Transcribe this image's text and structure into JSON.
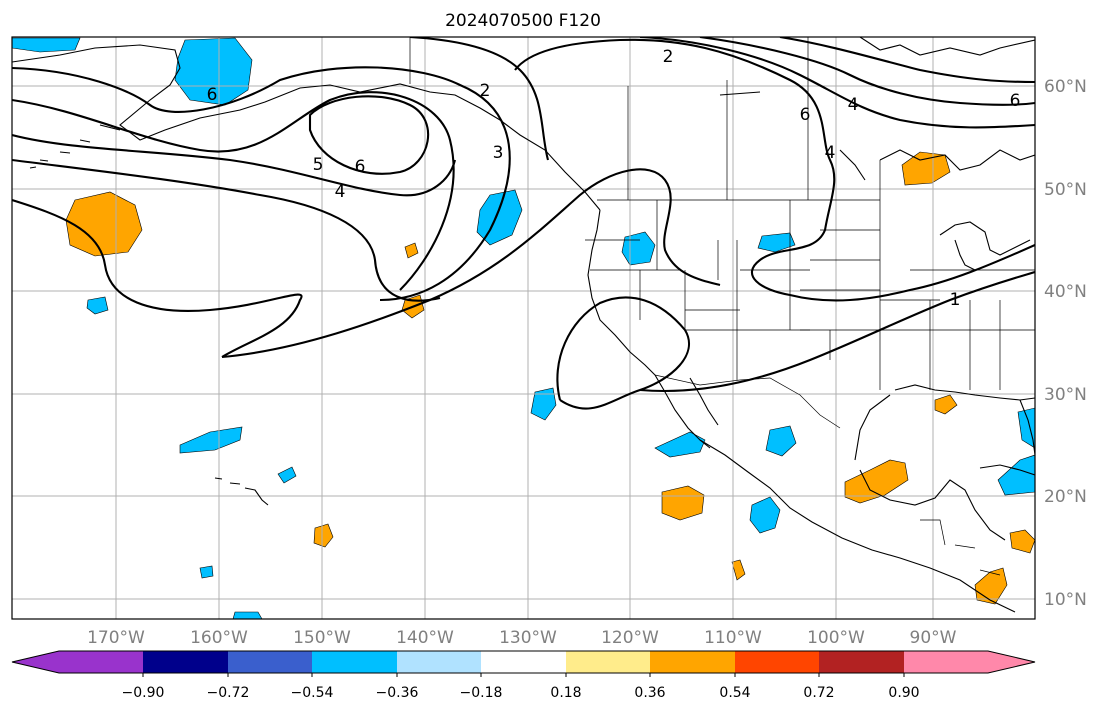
{
  "title": "2024070500 F120",
  "map": {
    "longitude_labels": [
      "170°W",
      "160°W",
      "150°W",
      "140°W",
      "130°W",
      "120°W",
      "110°W",
      "100°W",
      "90°W"
    ],
    "latitude_labels": [
      "60°N",
      "50°N",
      "40°N",
      "30°N",
      "20°N",
      "10°N"
    ],
    "gridlines": true,
    "contour_color": "#000000",
    "contour_labels": [
      "2",
      "4",
      "5",
      "6",
      "6",
      "2",
      "4",
      "6",
      "6",
      "4",
      "3",
      "1"
    ]
  },
  "colorbar": {
    "ticks": [
      "−0.90",
      "−0.72",
      "−0.54",
      "−0.36",
      "−0.18",
      "0.18",
      "0.36",
      "0.54",
      "0.72",
      "0.90"
    ],
    "colors": [
      "#9933cc",
      "#00008b",
      "#3a5fcd",
      "#00bfff",
      "#b0e2ff",
      "#ffffff",
      "#ffec8b",
      "#ffa500",
      "#ff4500",
      "#b22222",
      "#ff88aa"
    ],
    "extend": "both"
  }
}
